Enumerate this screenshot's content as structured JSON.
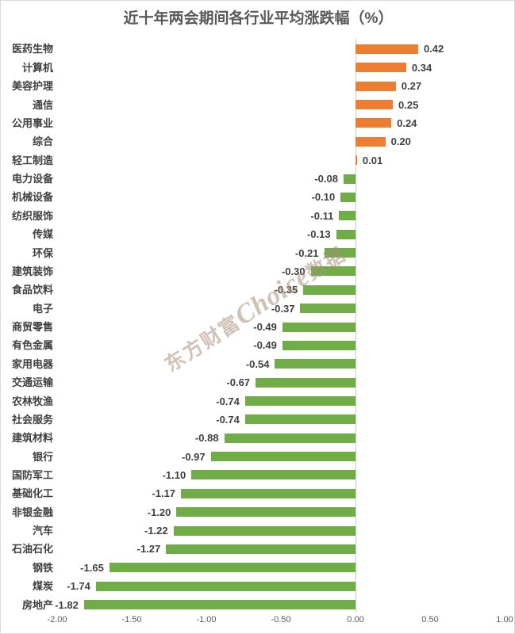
{
  "title": "近十年两会期间各行业平均涨跌幅（%）",
  "watermark": {
    "prefix": "东方财富",
    "brand": "Choice",
    "suffix": "数据"
  },
  "chart_data": {
    "type": "bar",
    "orientation": "horizontal",
    "title": "近十年两会期间各行业平均涨跌幅（%）",
    "xlabel": "",
    "ylabel": "",
    "xlim": [
      -2.0,
      1.0
    ],
    "grid": false,
    "legend": "none",
    "positive_color": "#ED7D31",
    "negative_color": "#70AD47",
    "categories": [
      "医药生物",
      "计算机",
      "美容护理",
      "通信",
      "公用事业",
      "综合",
      "轻工制造",
      "电力设备",
      "机械设备",
      "纺织服饰",
      "传媒",
      "环保",
      "建筑装饰",
      "食品饮料",
      "电子",
      "商贸零售",
      "有色金属",
      "家用电器",
      "交通运输",
      "农林牧渔",
      "社会服务",
      "建筑材料",
      "银行",
      "国防军工",
      "基础化工",
      "非银金融",
      "汽车",
      "石油石化",
      "钢铁",
      "煤炭",
      "房地产"
    ],
    "values": [
      0.42,
      0.34,
      0.27,
      0.25,
      0.24,
      0.2,
      0.01,
      -0.08,
      -0.1,
      -0.11,
      -0.13,
      -0.21,
      -0.3,
      -0.35,
      -0.37,
      -0.49,
      -0.49,
      -0.54,
      -0.67,
      -0.74,
      -0.74,
      -0.88,
      -0.97,
      -1.1,
      -1.17,
      -1.2,
      -1.22,
      -1.27,
      -1.65,
      -1.74,
      -1.82
    ],
    "x_tick_values": [
      -2.0,
      -1.5,
      -1.0,
      -0.5,
      0.0,
      0.5,
      1.0
    ],
    "x_tick_labels": [
      "-2.00",
      "-1.50",
      "-1.00",
      "-0.50",
      "0.00",
      "0.50",
      "1.00"
    ]
  }
}
